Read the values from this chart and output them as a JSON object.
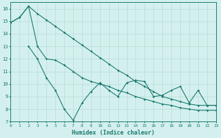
{
  "line1": {
    "x": [
      0,
      1,
      2,
      3,
      4,
      5,
      6,
      7,
      8,
      9,
      10,
      11,
      12,
      13,
      14,
      15,
      16,
      17,
      18,
      19,
      20,
      21,
      22,
      23
    ],
    "y": [
      14.9,
      15.3,
      16.2,
      15.6,
      15.1,
      14.6,
      14.1,
      13.6,
      13.1,
      12.6,
      12.1,
      11.6,
      11.1,
      10.7,
      10.2,
      9.8,
      9.4,
      9.0,
      8.8,
      8.6,
      8.4,
      8.3,
      8.3,
      8.3
    ],
    "color": "#1a7a6e",
    "linewidth": 0.8,
    "marker": "D",
    "markersize": 1.8
  },
  "line2": {
    "x": [
      0,
      1,
      2,
      3,
      4,
      5,
      6,
      7,
      8,
      9,
      10,
      11,
      12,
      13,
      14,
      15,
      16,
      17,
      18,
      19,
      20,
      21,
      22,
      23
    ],
    "y": [
      14.9,
      15.3,
      16.2,
      13.0,
      12.0,
      11.9,
      11.5,
      11.0,
      10.5,
      10.2,
      10.0,
      9.8,
      9.5,
      9.3,
      9.0,
      8.8,
      8.6,
      8.4,
      8.3,
      8.1,
      8.0,
      7.9,
      7.9,
      7.9
    ],
    "color": "#1a7a6e",
    "linewidth": 0.8,
    "marker": "D",
    "markersize": 1.8
  },
  "line3": {
    "x": [
      2,
      3,
      4,
      5,
      6,
      7,
      8,
      9,
      10,
      11,
      12,
      13,
      14,
      15,
      16,
      17,
      18,
      19,
      20,
      21,
      22,
      23
    ],
    "y": [
      13.0,
      12.0,
      10.5,
      9.5,
      8.0,
      7.1,
      8.5,
      9.4,
      10.1,
      9.5,
      9.0,
      10.1,
      10.3,
      10.2,
      9.0,
      9.1,
      9.5,
      9.8,
      8.5,
      9.5,
      8.3,
      8.3
    ],
    "color": "#1a7a6e",
    "linewidth": 0.8,
    "marker": "D",
    "markersize": 1.8
  },
  "xlabel": "Humidex (Indice chaleur)",
  "xlim": [
    0,
    23
  ],
  "ylim": [
    7,
    16.5
  ],
  "yticks": [
    7,
    8,
    9,
    10,
    11,
    12,
    13,
    14,
    15,
    16
  ],
  "xticks": [
    0,
    1,
    2,
    3,
    4,
    5,
    6,
    7,
    8,
    9,
    10,
    11,
    12,
    13,
    14,
    15,
    16,
    17,
    18,
    19,
    20,
    21,
    22,
    23
  ],
  "background_color": "#d4f0ee",
  "grid_color": "#b8dbd8",
  "tick_color": "#1a7a6e",
  "label_color": "#1a7a6e",
  "spine_color": "#1a7a6e"
}
